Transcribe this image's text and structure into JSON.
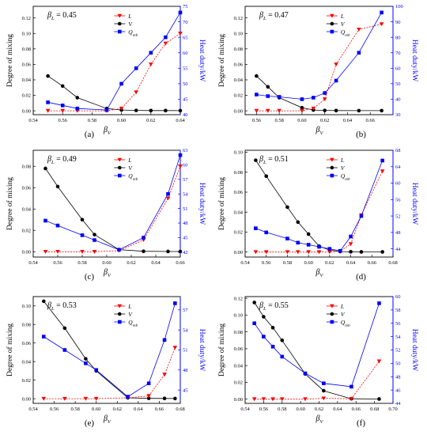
{
  "figure": {
    "ylabel_left": "Degree of mixing",
    "ylabel_right": "Heat duty/kW",
    "xlabel": "β",
    "xlabel_sub": "V",
    "param_symbol": "β",
    "param_sub": "L",
    "legend": [
      {
        "key": "L",
        "label": "L",
        "sub": "",
        "color": "#ff0000",
        "marker": "triangle-down"
      },
      {
        "key": "V",
        "label": "V",
        "sub": "",
        "color": "#000000",
        "marker": "circle"
      },
      {
        "key": "Q",
        "label": "Q",
        "sub": "reb",
        "color": "#0000ff",
        "marker": "square"
      }
    ],
    "colors": {
      "L": "#ff0000",
      "V": "#000000",
      "Q": "#0000ff",
      "right_axis": "#0000ff"
    }
  },
  "chart_data": [
    {
      "type": "line",
      "panel": "(a)",
      "param_value": "= 0.45",
      "xlim": [
        0.54,
        0.64
      ],
      "xticks": [
        "0.54",
        "0.56",
        "0.58",
        "0.60",
        "0.62",
        "0.64"
      ],
      "ylim": [
        -0.005,
        0.135
      ],
      "yticks": [
        "0.00",
        "0.02",
        "0.04",
        "0.06",
        "0.08",
        "0.10",
        "0.12"
      ],
      "y2lim": [
        40,
        75
      ],
      "y2ticks": [
        "40",
        "45",
        "50",
        "55",
        "60",
        "65",
        "70",
        "75"
      ],
      "series": [
        {
          "key": "V",
          "x": [
            0.55,
            0.56,
            0.57,
            0.59,
            0.6,
            0.61,
            0.62,
            0.63,
            0.64
          ],
          "y": [
            0.045,
            0.032,
            0.017,
            0.003,
            0.001,
            0.0005,
            0.0003,
            0.0003,
            0.0002
          ]
        },
        {
          "key": "L",
          "x": [
            0.55,
            0.56,
            0.57,
            0.59,
            0.6,
            0.61,
            0.62,
            0.63,
            0.64
          ],
          "y": [
            0.0,
            0.0,
            0.0,
            0.0,
            0.003,
            0.024,
            0.06,
            0.087,
            0.1
          ]
        },
        {
          "key": "Q",
          "axis": "right",
          "x": [
            0.55,
            0.56,
            0.57,
            0.59,
            0.6,
            0.61,
            0.62,
            0.63,
            0.64
          ],
          "y": [
            44,
            43,
            42,
            41.5,
            50,
            55,
            60,
            65,
            73
          ]
        }
      ]
    },
    {
      "type": "line",
      "panel": "(b)",
      "param_value": "= 0.47",
      "xlim": [
        0.55,
        0.68
      ],
      "xticks": [
        "0.56",
        "0.58",
        "0.60",
        "0.62",
        "0.64",
        "0.66"
      ],
      "ylim": [
        -0.005,
        0.135
      ],
      "yticks": [
        "0.00",
        "0.02",
        "0.04",
        "0.06",
        "0.08",
        "0.10",
        "0.12"
      ],
      "y2lim": [
        30,
        100
      ],
      "y2ticks": [
        "30",
        "40",
        "50",
        "60",
        "70",
        "80",
        "90",
        "100"
      ],
      "series": [
        {
          "key": "V",
          "x": [
            0.56,
            0.57,
            0.58,
            0.6,
            0.61,
            0.62,
            0.63,
            0.65,
            0.67
          ],
          "y": [
            0.045,
            0.031,
            0.017,
            0.004,
            0.001,
            0.0005,
            0.0003,
            0.0002,
            0.0002
          ]
        },
        {
          "key": "L",
          "x": [
            0.56,
            0.57,
            0.58,
            0.6,
            0.61,
            0.62,
            0.63,
            0.65,
            0.67
          ],
          "y": [
            0.0,
            0.0,
            0.0,
            0.0,
            0.003,
            0.015,
            0.06,
            0.105,
            0.112
          ]
        },
        {
          "key": "Q",
          "axis": "right",
          "x": [
            0.56,
            0.57,
            0.58,
            0.6,
            0.61,
            0.62,
            0.63,
            0.65,
            0.67
          ],
          "y": [
            43,
            42,
            41.5,
            40,
            41,
            44,
            52,
            70,
            96
          ]
        }
      ]
    },
    {
      "type": "line",
      "panel": "(c)",
      "param_value": "= 0.49",
      "xlim": [
        0.54,
        0.66
      ],
      "xticks": [
        "0.54",
        "0.56",
        "0.58",
        "0.60",
        "0.62",
        "0.64",
        "0.66"
      ],
      "ylim": [
        -0.005,
        0.095
      ],
      "yticks": [
        "0.00",
        "0.02",
        "0.04",
        "0.06",
        "0.08"
      ],
      "y2lim": [
        41,
        63
      ],
      "y2ticks": [
        "42",
        "45",
        "48",
        "51",
        "54",
        "57",
        "60",
        "63"
      ],
      "series": [
        {
          "key": "V",
          "x": [
            0.55,
            0.56,
            0.58,
            0.59,
            0.61,
            0.63,
            0.65,
            0.66
          ],
          "y": [
            0.078,
            0.061,
            0.03,
            0.016,
            0.002,
            0.0004,
            0.0002,
            0.0002
          ]
        },
        {
          "key": "L",
          "x": [
            0.55,
            0.56,
            0.58,
            0.59,
            0.61,
            0.63,
            0.65,
            0.66
          ],
          "y": [
            0.0,
            0.0,
            0.0,
            0.0,
            0.001,
            0.011,
            0.05,
            0.08
          ]
        },
        {
          "key": "Q",
          "axis": "right",
          "x": [
            0.55,
            0.56,
            0.58,
            0.59,
            0.61,
            0.63,
            0.65,
            0.66
          ],
          "y": [
            48.5,
            47.5,
            45.5,
            44.5,
            42.5,
            45,
            54,
            62
          ]
        }
      ]
    },
    {
      "type": "line",
      "panel": "(d)",
      "param_value": "= 0.51",
      "xlim": [
        0.54,
        0.68
      ],
      "xticks": [
        "0.54",
        "0.56",
        "0.58",
        "0.60",
        "0.62",
        "0.64",
        "0.66",
        "0.68"
      ],
      "ylim": [
        -0.005,
        0.102
      ],
      "yticks": [
        "0.00",
        "0.02",
        "0.04",
        "0.06",
        "0.08",
        "0.10"
      ],
      "y2lim": [
        42,
        68
      ],
      "y2ticks": [
        "44",
        "48",
        "52",
        "56",
        "60",
        "64",
        "68"
      ],
      "series": [
        {
          "key": "V",
          "x": [
            0.55,
            0.56,
            0.58,
            0.59,
            0.6,
            0.61,
            0.62,
            0.63,
            0.64,
            0.65,
            0.67
          ],
          "y": [
            0.092,
            0.076,
            0.045,
            0.03,
            0.018,
            0.006,
            0.002,
            0.0005,
            0.0003,
            0.0002,
            0.0002
          ]
        },
        {
          "key": "L",
          "x": [
            0.55,
            0.56,
            0.58,
            0.59,
            0.6,
            0.61,
            0.62,
            0.63,
            0.64,
            0.65,
            0.67
          ],
          "y": [
            0.0,
            0.0,
            0.0,
            0.0,
            0.0,
            0.0,
            0.0,
            0.001,
            0.008,
            0.037,
            0.081
          ]
        },
        {
          "key": "Q",
          "axis": "right",
          "x": [
            0.55,
            0.56,
            0.58,
            0.59,
            0.6,
            0.61,
            0.62,
            0.63,
            0.64,
            0.65,
            0.67
          ],
          "y": [
            49,
            48,
            46.5,
            45.5,
            45,
            44.5,
            44,
            43.5,
            47,
            52,
            65.5
          ]
        }
      ]
    },
    {
      "type": "line",
      "panel": "(e)",
      "param_value": "= 0.53",
      "xlim": [
        0.54,
        0.68
      ],
      "xticks": [
        "0.54",
        "0.56",
        "0.58",
        "0.60",
        "0.62",
        "0.64",
        "0.66",
        "0.68"
      ],
      "ylim": [
        -0.005,
        0.11
      ],
      "yticks": [
        "0.00",
        "0.02",
        "0.04",
        "0.06",
        "0.08",
        "0.10"
      ],
      "y2lim": [
        43,
        59
      ],
      "y2ticks": [
        "45",
        "48",
        "51",
        "54",
        "57"
      ],
      "series": [
        {
          "key": "V",
          "x": [
            0.55,
            0.57,
            0.59,
            0.6,
            0.63,
            0.65,
            0.665,
            0.675
          ],
          "y": [
            0.105,
            0.076,
            0.043,
            0.03,
            0.001,
            0.0004,
            0.0003,
            0.0002
          ]
        },
        {
          "key": "L",
          "x": [
            0.55,
            0.57,
            0.59,
            0.6,
            0.63,
            0.65,
            0.665,
            0.675
          ],
          "y": [
            0.0,
            0.0,
            0.0,
            0.0,
            0.001,
            0.003,
            0.026,
            0.055
          ]
        },
        {
          "key": "Q",
          "axis": "right",
          "x": [
            0.55,
            0.57,
            0.59,
            0.6,
            0.63,
            0.65,
            0.665,
            0.675
          ],
          "y": [
            53,
            51,
            49,
            48,
            44,
            46,
            52.5,
            58
          ]
        }
      ]
    },
    {
      "type": "line",
      "panel": "(f)",
      "param_value": "= 0.55",
      "xlim": [
        0.54,
        0.7
      ],
      "xticks": [
        "0.54",
        "0.56",
        "0.58",
        "0.60",
        "0.62",
        "0.64",
        "0.66",
        "0.68",
        "0.70"
      ],
      "ylim": [
        -0.005,
        0.122
      ],
      "yticks": [
        "0.00",
        "0.02",
        "0.04",
        "0.06",
        "0.08",
        "0.10",
        "0.12"
      ],
      "y2lim": [
        44,
        60
      ],
      "y2ticks": [
        "44",
        "46",
        "48",
        "50",
        "52",
        "54",
        "56",
        "58",
        "60"
      ],
      "series": [
        {
          "key": "V",
          "x": [
            0.55,
            0.56,
            0.57,
            0.58,
            0.605,
            0.625,
            0.655,
            0.685
          ],
          "y": [
            0.115,
            0.098,
            0.085,
            0.07,
            0.03,
            0.01,
            0.0005,
            0.0002
          ]
        },
        {
          "key": "L",
          "x": [
            0.55,
            0.56,
            0.57,
            0.58,
            0.605,
            0.625,
            0.655,
            0.685
          ],
          "y": [
            0.0,
            0.0,
            0.0,
            0.0,
            0.0,
            0.001,
            0.0005,
            0.045
          ]
        },
        {
          "key": "Q",
          "axis": "right",
          "x": [
            0.55,
            0.56,
            0.57,
            0.58,
            0.605,
            0.625,
            0.655,
            0.685
          ],
          "y": [
            56,
            54,
            52.5,
            51,
            48.5,
            47,
            46.5,
            59
          ]
        }
      ]
    }
  ]
}
